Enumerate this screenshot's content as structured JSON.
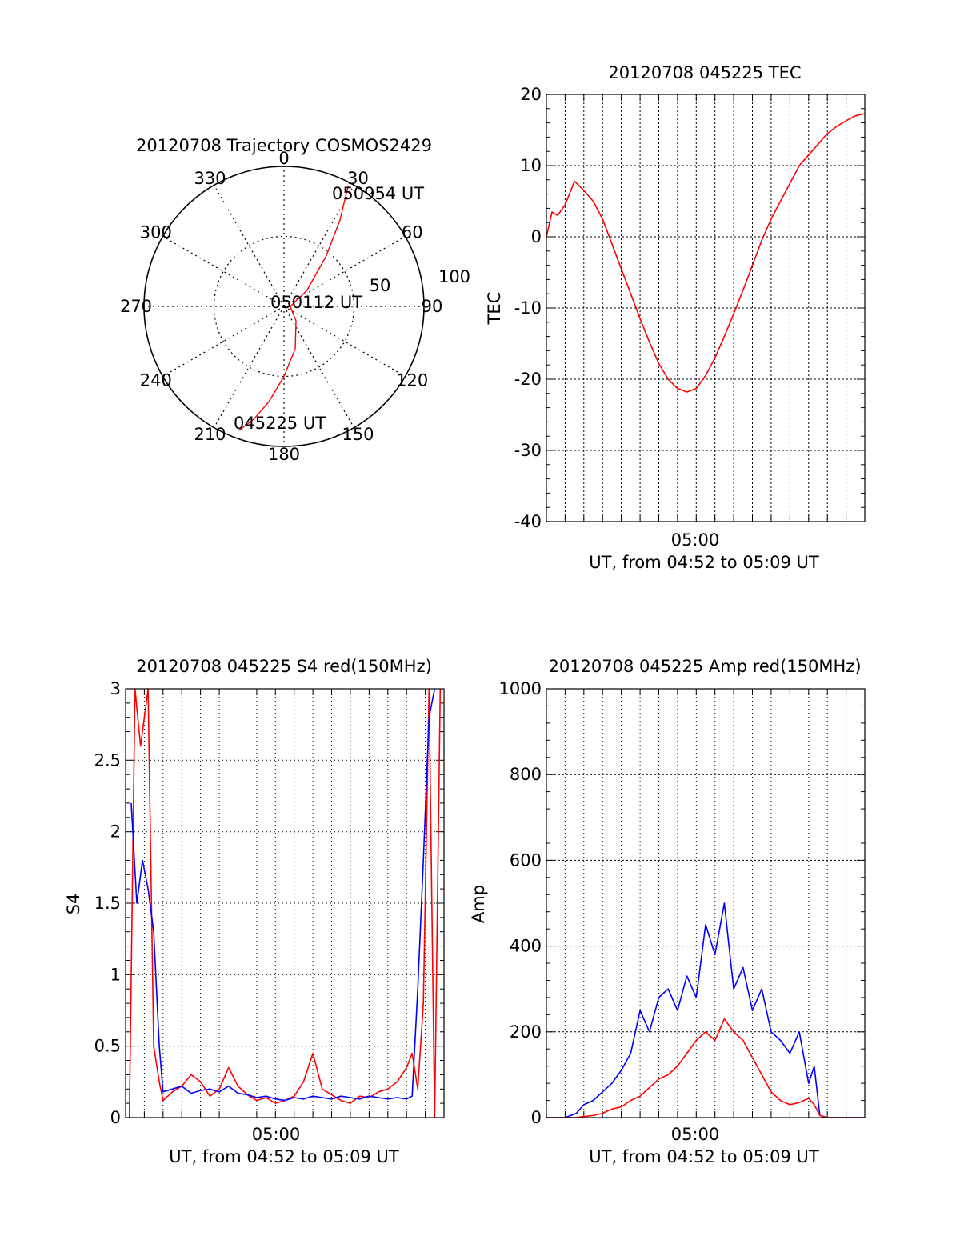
{
  "chart_data": [
    {
      "id": "polar",
      "type": "polar-trajectory",
      "title": "20120708 Trajectory COSMOS2429",
      "angle_ticks": [
        "0",
        "30",
        "60",
        "90",
        "120",
        "150",
        "180",
        "210",
        "240",
        "270",
        "300",
        "330"
      ],
      "ring_labels": [
        "50",
        "100"
      ],
      "trajectory_color": "#ff0000",
      "trajectory": {
        "azimuth_deg": [
          200,
          195,
          189,
          180,
          165,
          140,
          90,
          55,
          40,
          33,
          28
        ],
        "elevation_deg": [
          5,
          15,
          28,
          45,
          62,
          78,
          86,
          72,
          48,
          24,
          2
        ]
      },
      "annotations": [
        "050954 UT",
        "050112 UT",
        "045225 UT"
      ]
    },
    {
      "id": "tec",
      "type": "line",
      "title": "20120708 045225 TEC",
      "ylabel": "TEC",
      "xlabel": "UT, from 04:52 to 05:09 UT",
      "xtick_labels": [
        "05:00"
      ],
      "ylim": [
        -40,
        20
      ],
      "yticks": [
        "-40",
        "-30",
        "-20",
        "-10",
        "0",
        "10",
        "20"
      ],
      "grid": true,
      "series": [
        {
          "color": "#ff0000",
          "x": [
            0,
            0.3,
            0.6,
            1.0,
            1.5,
            2.0,
            2.5,
            3.0,
            3.5,
            4.0,
            4.5,
            5.0,
            5.5,
            6.0,
            6.5,
            7.0,
            7.5,
            8.0,
            8.5,
            9.0,
            9.5,
            10.0,
            10.5,
            11.0,
            11.5,
            12.0,
            12.5,
            13.0,
            13.5,
            14.0,
            14.5,
            15.0,
            15.5,
            16.0,
            16.5,
            17.0
          ],
          "y": [
            0,
            3.5,
            3.0,
            4.5,
            7.8,
            6.5,
            5.0,
            2.5,
            -1.0,
            -4.5,
            -8.0,
            -11.5,
            -14.8,
            -17.8,
            -20.0,
            -21.3,
            -21.8,
            -21.3,
            -19.5,
            -17.0,
            -14.0,
            -10.8,
            -7.5,
            -4.0,
            -0.5,
            2.5,
            5.0,
            7.5,
            10.0,
            11.5,
            13.0,
            14.5,
            15.5,
            16.3,
            17.0,
            17.3
          ]
        }
      ]
    },
    {
      "id": "s4",
      "type": "line",
      "title": "20120708 045225 S4 red(150MHz)",
      "ylabel": "S4",
      "xlabel": "UT, from 04:52 to 05:09 UT",
      "xtick_labels": [
        "05:00"
      ],
      "ylim": [
        0,
        3
      ],
      "yticks": [
        "0",
        "0.5",
        "1",
        "1.5",
        "2",
        "2.5",
        "3"
      ],
      "grid": true,
      "series": [
        {
          "color": "#ff0000",
          "x": [
            0.2,
            0.5,
            0.8,
            1.2,
            1.5,
            1.8,
            2.0,
            2.5,
            3.0,
            3.5,
            4.0,
            4.5,
            5.0,
            5.5,
            6.0,
            6.5,
            7.0,
            7.5,
            8.0,
            8.5,
            9.0,
            9.5,
            10.0,
            10.5,
            11.0,
            11.5,
            12.0,
            12.5,
            13.0,
            13.5,
            14.0,
            14.5,
            15.0,
            15.3,
            15.6,
            15.9,
            16.2,
            16.5,
            16.8
          ],
          "y": [
            0.0,
            3.0,
            2.6,
            3.0,
            0.5,
            0.25,
            0.12,
            0.18,
            0.22,
            0.3,
            0.25,
            0.15,
            0.2,
            0.35,
            0.22,
            0.16,
            0.12,
            0.14,
            0.1,
            0.12,
            0.15,
            0.25,
            0.45,
            0.2,
            0.16,
            0.12,
            0.1,
            0.15,
            0.14,
            0.18,
            0.2,
            0.25,
            0.35,
            0.45,
            0.2,
            0.8,
            3.0,
            0.0,
            3.0
          ]
        },
        {
          "color": "#0000ff",
          "x": [
            0.3,
            0.6,
            0.9,
            1.2,
            1.5,
            1.8,
            2.0,
            2.5,
            3.0,
            3.5,
            4.0,
            4.5,
            5.0,
            5.5,
            6.0,
            6.5,
            7.0,
            7.5,
            8.0,
            8.5,
            9.0,
            9.5,
            10.0,
            10.5,
            11.0,
            11.5,
            12.0,
            12.5,
            13.0,
            13.5,
            14.0,
            14.5,
            15.0,
            15.3,
            15.6,
            15.9,
            16.2,
            16.5
          ],
          "y": [
            2.2,
            1.5,
            1.8,
            1.6,
            1.3,
            0.5,
            0.18,
            0.2,
            0.22,
            0.17,
            0.19,
            0.2,
            0.18,
            0.22,
            0.17,
            0.16,
            0.14,
            0.15,
            0.13,
            0.12,
            0.14,
            0.13,
            0.15,
            0.14,
            0.13,
            0.15,
            0.14,
            0.13,
            0.15,
            0.14,
            0.13,
            0.14,
            0.13,
            0.15,
            0.9,
            1.8,
            2.8,
            3.0
          ]
        }
      ]
    },
    {
      "id": "amp",
      "type": "line",
      "title": "20120708 045225 Amp red(150MHz)",
      "ylabel": "Amp",
      "xlabel": "UT, from 04:52 to 05:09 UT",
      "xtick_labels": [
        "05:00"
      ],
      "ylim": [
        0,
        1000
      ],
      "yticks": [
        "0",
        "200",
        "400",
        "600",
        "800",
        "1000"
      ],
      "grid": true,
      "series": [
        {
          "color": "#0000ff",
          "x": [
            0,
            1.0,
            1.6,
            2.0,
            2.5,
            3.0,
            3.5,
            4.0,
            4.5,
            5.0,
            5.5,
            6.0,
            6.5,
            7.0,
            7.5,
            8.0,
            8.5,
            9.0,
            9.5,
            10.0,
            10.5,
            11.0,
            11.5,
            12.0,
            12.5,
            13.0,
            13.5,
            14.0,
            14.3,
            14.6,
            15.0,
            16.0,
            17.0
          ],
          "y": [
            0,
            0,
            10,
            30,
            40,
            60,
            80,
            110,
            150,
            250,
            200,
            280,
            300,
            250,
            330,
            280,
            450,
            380,
            500,
            300,
            350,
            250,
            300,
            200,
            180,
            150,
            200,
            80,
            120,
            5,
            0,
            0,
            0
          ]
        },
        {
          "color": "#ff0000",
          "x": [
            0,
            1.5,
            2.5,
            3.0,
            3.5,
            4.0,
            4.5,
            5.0,
            5.5,
            6.0,
            6.5,
            7.0,
            7.5,
            8.0,
            8.5,
            9.0,
            9.5,
            10.0,
            10.5,
            11.0,
            11.5,
            12.0,
            12.5,
            13.0,
            13.5,
            14.0,
            14.3,
            14.6,
            15.0,
            17.0
          ],
          "y": [
            0,
            0,
            5,
            10,
            20,
            25,
            40,
            50,
            70,
            90,
            100,
            120,
            150,
            180,
            200,
            180,
            230,
            200,
            180,
            140,
            100,
            60,
            40,
            30,
            35,
            45,
            30,
            5,
            0,
            0
          ]
        }
      ]
    }
  ]
}
